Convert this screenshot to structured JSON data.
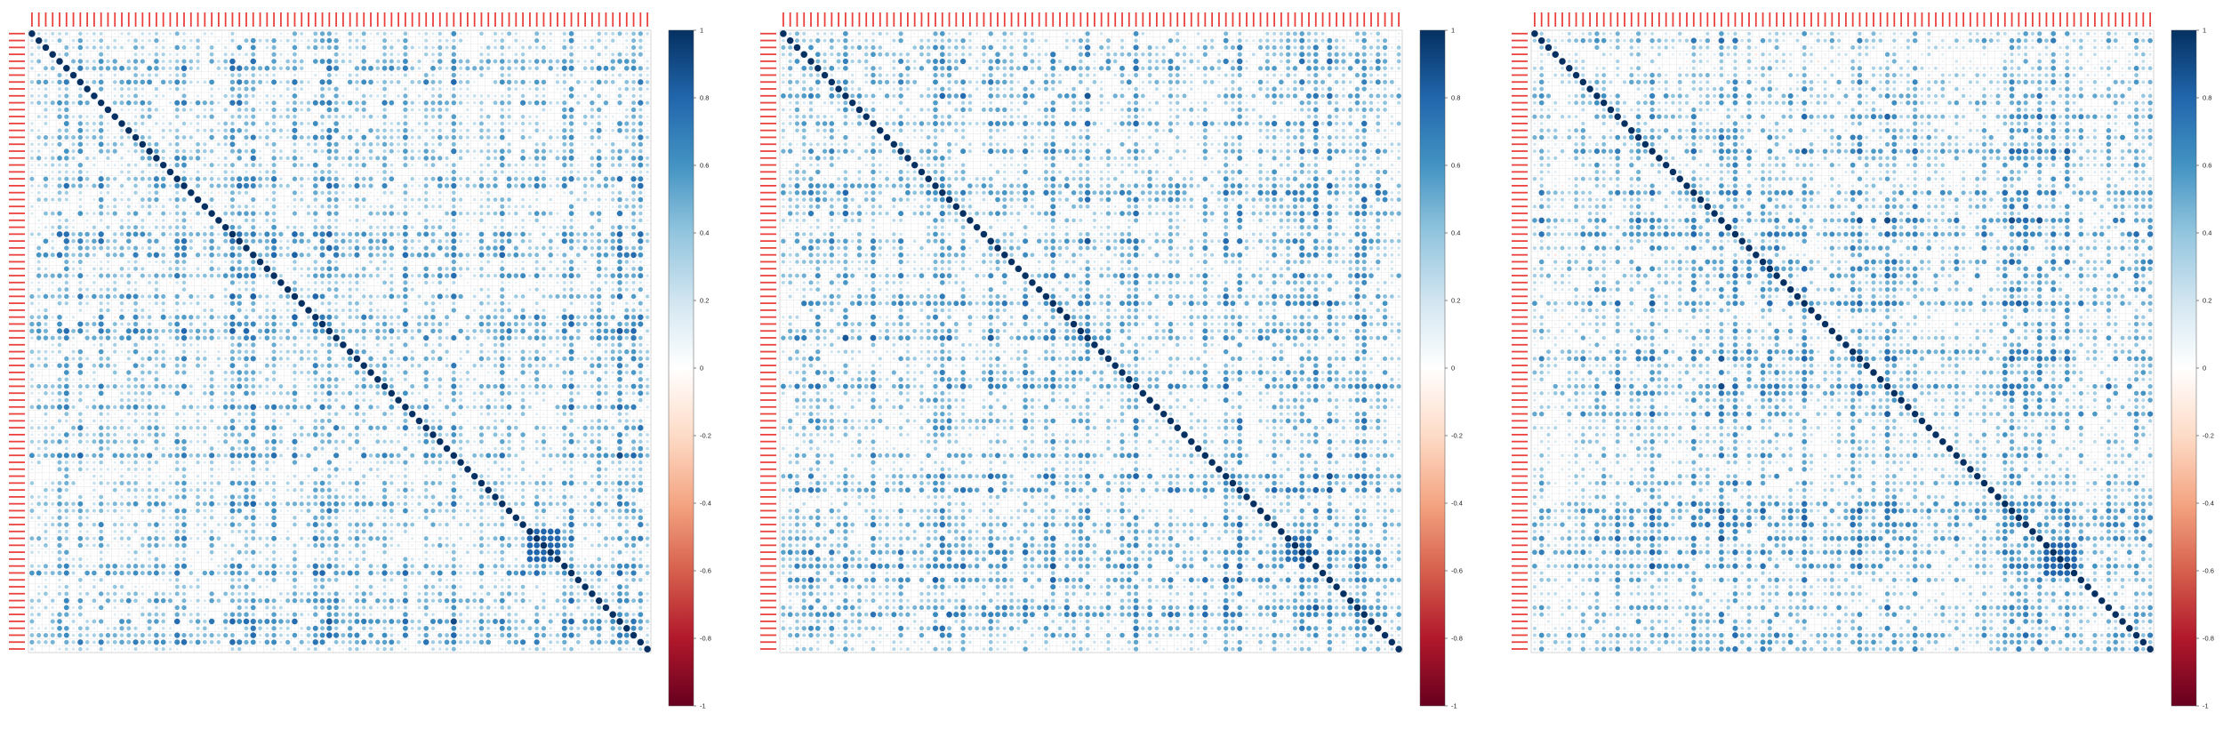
{
  "chart_data": [
    {
      "type": "heatmap",
      "subtype": "correlation-matrix-circles",
      "title": "",
      "n_variables": 90,
      "diagonal_value": 1,
      "typical_offdiagonal_range": [
        0.0,
        0.7
      ],
      "dominant_sign": "positive",
      "dense_block_near_diagonal": {
        "rows": [
          72,
          76
        ],
        "value": 0.8
      },
      "seed": 11,
      "grid": true,
      "variable_label_color": "#e8211c",
      "colorbar": {
        "ticks": [
          1,
          0.8,
          0.6,
          0.4,
          0.2,
          0,
          -0.2,
          -0.4,
          -0.6,
          -0.8,
          -1
        ],
        "range": [
          -1,
          1
        ],
        "position": "right"
      }
    },
    {
      "type": "heatmap",
      "subtype": "correlation-matrix-circles",
      "title": "",
      "n_variables": 90,
      "diagonal_value": 1,
      "typical_offdiagonal_range": [
        0.0,
        0.7
      ],
      "dominant_sign": "positive",
      "dense_block_near_diagonal": {
        "rows": [
          73,
          76
        ],
        "value": 0.75
      },
      "seed": 23,
      "grid": true,
      "variable_label_color": "#e8211c",
      "colorbar": {
        "ticks": [
          1,
          0.8,
          0.6,
          0.4,
          0.2,
          0,
          -0.2,
          -0.4,
          -0.6,
          -0.8,
          -1
        ],
        "range": [
          -1,
          1
        ],
        "position": "right"
      }
    },
    {
      "type": "heatmap",
      "subtype": "correlation-matrix-circles",
      "title": "",
      "n_variables": 90,
      "diagonal_value": 1,
      "typical_offdiagonal_range": [
        0.0,
        0.7
      ],
      "dominant_sign": "positive",
      "dense_block_near_diagonal": {
        "rows": [
          74,
          78
        ],
        "value": 0.8
      },
      "seed": 37,
      "grid": true,
      "variable_label_color": "#e8211c",
      "colorbar": {
        "ticks": [
          1,
          0.8,
          0.6,
          0.4,
          0.2,
          0,
          -0.2,
          -0.4,
          -0.6,
          -0.8,
          -1
        ],
        "range": [
          -1,
          1
        ],
        "position": "right"
      }
    }
  ],
  "colors": {
    "scale": [
      "#67001f",
      "#b2182b",
      "#d6604d",
      "#f4a582",
      "#fddbc7",
      "#ffffff",
      "#d1e5f0",
      "#92c5de",
      "#4393c3",
      "#2166ac",
      "#053061"
    ],
    "grid": "#cfcfcf",
    "label": "#e8211c"
  }
}
